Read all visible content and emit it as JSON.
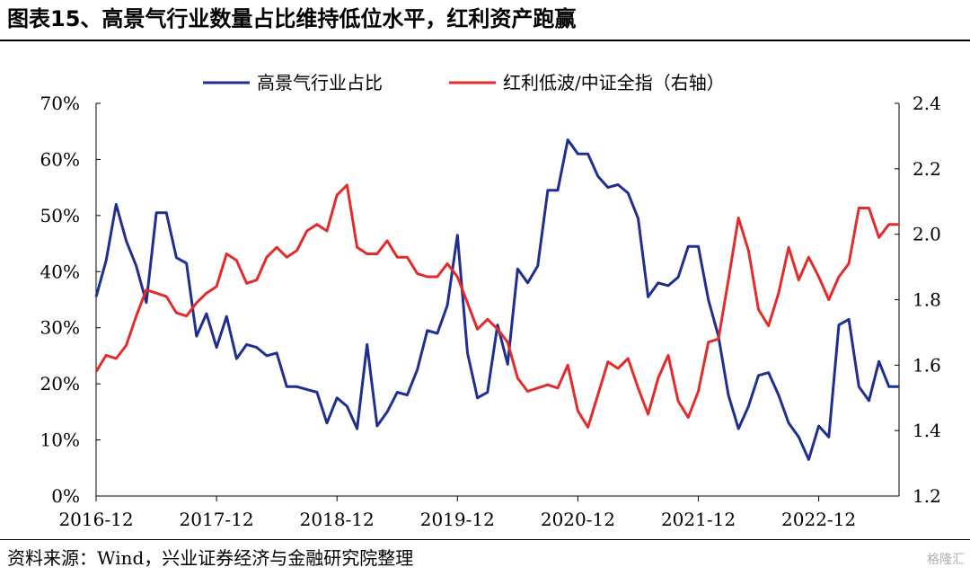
{
  "header": {
    "title": "图表15、高景气行业数量占比维持低位水平，红利资产跑赢"
  },
  "footer": {
    "source": "资料来源：Wind，兴业证券经济与金融研究院整理"
  },
  "watermark": {
    "text": "格隆汇"
  },
  "chart_data": {
    "type": "line",
    "title": "图表15、高景气行业数量占比维持低位水平，红利资产跑赢",
    "legend_position": "top-center",
    "grid": false,
    "x_ticks": [
      "2016-12",
      "2017-12",
      "2018-12",
      "2019-12",
      "2020-12",
      "2021-12",
      "2022-12"
    ],
    "x_range": [
      "2016-12",
      "2023-08"
    ],
    "y_left": {
      "ticks": [
        "0%",
        "10%",
        "20%",
        "30%",
        "40%",
        "50%",
        "60%",
        "70%"
      ],
      "tick_values": [
        0,
        10,
        20,
        30,
        40,
        50,
        60,
        70
      ],
      "range": [
        0,
        70
      ]
    },
    "y_right": {
      "ticks": [
        "1.2",
        "1.4",
        "1.6",
        "1.8",
        "2.0",
        "2.2",
        "2.4"
      ],
      "tick_values": [
        1.2,
        1.4,
        1.6,
        1.8,
        2.0,
        2.2,
        2.4
      ],
      "range": [
        1.2,
        2.4
      ]
    },
    "series": [
      {
        "name": "高景气行业占比",
        "axis": "left",
        "color": "#1f2f8f",
        "x": [
          "2016-12",
          "2017-01",
          "2017-02",
          "2017-03",
          "2017-04",
          "2017-05",
          "2017-06",
          "2017-07",
          "2017-08",
          "2017-09",
          "2017-10",
          "2017-11",
          "2017-12",
          "2018-01",
          "2018-02",
          "2018-03",
          "2018-04",
          "2018-05",
          "2018-06",
          "2018-07",
          "2018-08",
          "2018-09",
          "2018-10",
          "2018-11",
          "2018-12",
          "2019-01",
          "2019-02",
          "2019-03",
          "2019-04",
          "2019-05",
          "2019-06",
          "2019-07",
          "2019-08",
          "2019-09",
          "2019-10",
          "2019-11",
          "2019-12",
          "2020-01",
          "2020-02",
          "2020-03",
          "2020-04",
          "2020-05",
          "2020-06",
          "2020-07",
          "2020-08",
          "2020-09",
          "2020-10",
          "2020-11",
          "2020-12",
          "2021-01",
          "2021-02",
          "2021-03",
          "2021-04",
          "2021-05",
          "2021-06",
          "2021-07",
          "2021-08",
          "2021-09",
          "2021-10",
          "2021-11",
          "2021-12",
          "2022-01",
          "2022-02",
          "2022-03",
          "2022-04",
          "2022-05",
          "2022-06",
          "2022-07",
          "2022-08",
          "2022-09",
          "2022-10",
          "2022-11",
          "2022-12",
          "2023-01",
          "2023-02",
          "2023-03",
          "2023-04",
          "2023-05",
          "2023-06",
          "2023-07",
          "2023-08"
        ],
        "values": [
          35.5,
          42,
          52,
          45.5,
          41,
          34.5,
          50.5,
          50.5,
          42.5,
          41.5,
          28.5,
          32.5,
          26.5,
          32,
          24.5,
          27,
          26.5,
          25,
          25.5,
          19.5,
          19.5,
          19,
          18.5,
          13,
          17.5,
          16,
          12,
          27,
          12.5,
          15,
          18.5,
          18,
          22.5,
          29.5,
          29,
          34,
          46.5,
          25.5,
          17.5,
          18.5,
          30.5,
          23.5,
          40.5,
          38,
          41,
          54.5,
          54.5,
          63.5,
          61,
          61,
          57,
          55,
          55.5,
          54,
          49.5,
          35.5,
          38,
          37.5,
          39,
          44.5,
          44.5,
          35,
          28.5,
          18,
          12,
          16,
          21.5,
          22,
          18,
          13,
          10.5,
          6.5,
          12.5,
          10.5,
          30.5,
          31.5,
          19.5,
          17,
          24,
          19.5,
          19.5
        ]
      },
      {
        "name": "红利低波/中证全指（右轴）",
        "axis": "right",
        "color": "#e32b2b",
        "x": [
          "2016-12",
          "2017-01",
          "2017-02",
          "2017-03",
          "2017-04",
          "2017-05",
          "2017-06",
          "2017-07",
          "2017-08",
          "2017-09",
          "2017-10",
          "2017-11",
          "2017-12",
          "2018-01",
          "2018-02",
          "2018-03",
          "2018-04",
          "2018-05",
          "2018-06",
          "2018-07",
          "2018-08",
          "2018-09",
          "2018-10",
          "2018-11",
          "2018-12",
          "2019-01",
          "2019-02",
          "2019-03",
          "2019-04",
          "2019-05",
          "2019-06",
          "2019-07",
          "2019-08",
          "2019-09",
          "2019-10",
          "2019-11",
          "2019-12",
          "2020-01",
          "2020-02",
          "2020-03",
          "2020-04",
          "2020-05",
          "2020-06",
          "2020-07",
          "2020-08",
          "2020-09",
          "2020-10",
          "2020-11",
          "2020-12",
          "2021-01",
          "2021-02",
          "2021-03",
          "2021-04",
          "2021-05",
          "2021-06",
          "2021-07",
          "2021-08",
          "2021-09",
          "2021-10",
          "2021-11",
          "2021-12",
          "2022-01",
          "2022-02",
          "2022-03",
          "2022-04",
          "2022-05",
          "2022-06",
          "2022-07",
          "2022-08",
          "2022-09",
          "2022-10",
          "2022-11",
          "2022-12",
          "2023-01",
          "2023-02",
          "2023-03",
          "2023-04",
          "2023-05",
          "2023-06",
          "2023-07",
          "2023-08"
        ],
        "values": [
          1.58,
          1.63,
          1.62,
          1.66,
          1.75,
          1.83,
          1.82,
          1.81,
          1.76,
          1.75,
          1.79,
          1.82,
          1.84,
          1.94,
          1.92,
          1.85,
          1.86,
          1.93,
          1.96,
          1.93,
          1.95,
          2.01,
          2.03,
          2.01,
          2.12,
          2.15,
          1.96,
          1.94,
          1.94,
          1.98,
          1.93,
          1.93,
          1.88,
          1.87,
          1.87,
          1.91,
          1.87,
          1.79,
          1.71,
          1.74,
          1.71,
          1.67,
          1.56,
          1.52,
          1.53,
          1.54,
          1.53,
          1.6,
          1.46,
          1.41,
          1.51,
          1.61,
          1.59,
          1.62,
          1.53,
          1.45,
          1.56,
          1.63,
          1.49,
          1.44,
          1.52,
          1.67,
          1.68,
          1.86,
          2.05,
          1.95,
          1.77,
          1.72,
          1.82,
          1.96,
          1.86,
          1.93,
          1.87,
          1.8,
          1.87,
          1.91,
          2.08,
          2.08,
          1.99,
          2.03,
          2.03
        ]
      }
    ]
  }
}
